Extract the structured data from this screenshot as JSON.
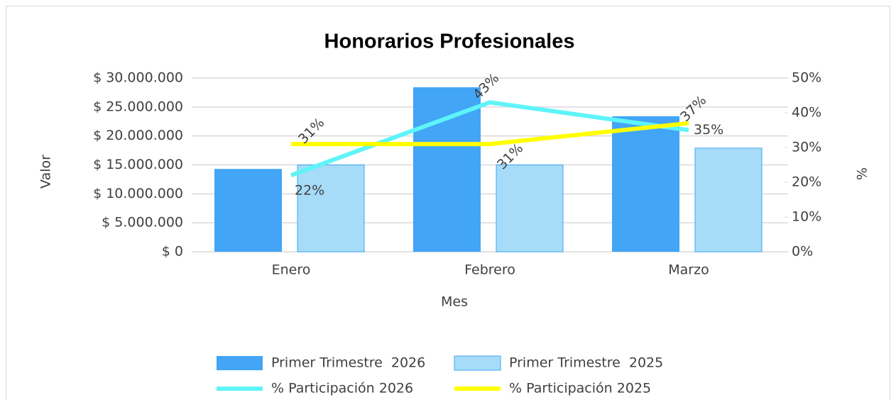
{
  "chart_data": {
    "type": "bar-line",
    "title": "Honorarios Profesionales",
    "x_label": "Mes",
    "y_label": "Valor",
    "y2_label": "%",
    "categories": [
      "Enero",
      "Febrero",
      "Marzo"
    ],
    "series": [
      {
        "name": "Primer Trimestre  2026",
        "type": "bar",
        "color": "#42a5f5",
        "values": [
          14300000,
          28400000,
          23400000
        ]
      },
      {
        "name": "Primer Trimestre  2025",
        "type": "bar",
        "color": "#a6dcf8",
        "values": [
          15000000,
          15000000,
          17900000
        ]
      },
      {
        "name": "% Participación 2026",
        "type": "line",
        "axis": "y2",
        "color": "#5ef4f8",
        "values": [
          22,
          43,
          35
        ],
        "value_labels": [
          "22%",
          "43%",
          "35%"
        ]
      },
      {
        "name": "% Participación 2025",
        "type": "line",
        "axis": "y2",
        "color": "#ffff00",
        "values": [
          31,
          31,
          37
        ],
        "value_labels": [
          "31%",
          "31%",
          "37%"
        ]
      }
    ],
    "ylim": [
      0,
      30000000
    ],
    "yticks": [
      {
        "value": 0,
        "label": "$ 0"
      },
      {
        "value": 5000000,
        "label": "$ 5.000.000"
      },
      {
        "value": 10000000,
        "label": "$ 10.000.000"
      },
      {
        "value": 15000000,
        "label": "$ 15.000.000"
      },
      {
        "value": 20000000,
        "label": "$ 20.000.000"
      },
      {
        "value": 25000000,
        "label": "$ 25.000.000"
      },
      {
        "value": 30000000,
        "label": "$ 30.000.000"
      }
    ],
    "y2lim": [
      0,
      50
    ],
    "y2ticks": [
      {
        "value": 0,
        "label": "0%"
      },
      {
        "value": 10,
        "label": "10%"
      },
      {
        "value": 20,
        "label": "20%"
      },
      {
        "value": 30,
        "label": "30%"
      },
      {
        "value": 40,
        "label": "40%"
      },
      {
        "value": 50,
        "label": "50%"
      }
    ],
    "grid": true
  }
}
